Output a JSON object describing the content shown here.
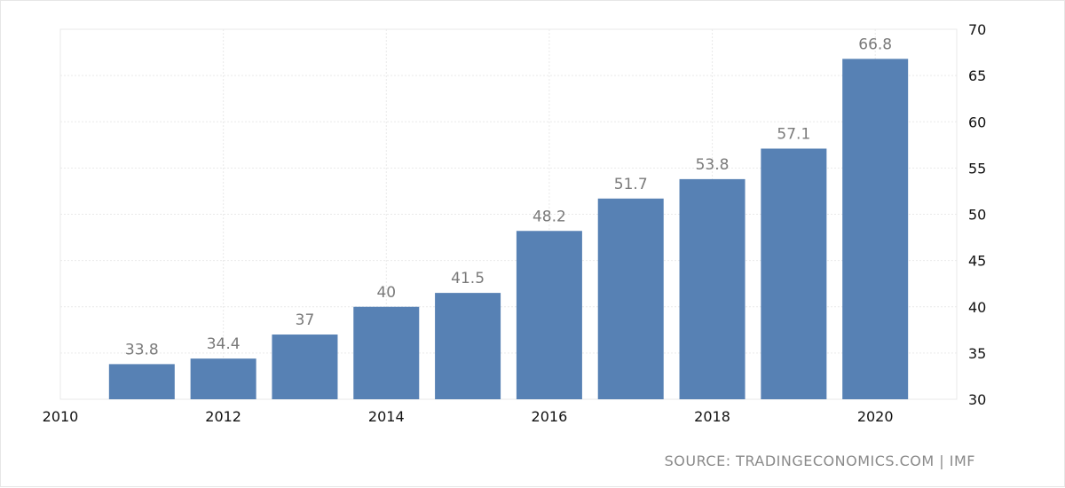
{
  "chart_data": {
    "type": "bar",
    "title": "",
    "xlabel": "",
    "ylabel": "",
    "x": [
      2011,
      2012,
      2013,
      2014,
      2015,
      2016,
      2017,
      2018,
      2019,
      2020
    ],
    "values": [
      33.8,
      34.4,
      37,
      40,
      41.5,
      48.2,
      51.7,
      53.8,
      57.1,
      66.8
    ],
    "data_labels": [
      "33.8",
      "34.4",
      "37",
      "40",
      "41.5",
      "48.2",
      "51.7",
      "53.8",
      "57.1",
      "66.8"
    ],
    "xlim": [
      2010,
      2021
    ],
    "ylim": [
      30,
      70
    ],
    "x_ticks": [
      2010,
      2012,
      2014,
      2016,
      2018,
      2020
    ],
    "x_tick_labels": [
      "2010",
      "2012",
      "2014",
      "2016",
      "2018",
      "2020"
    ],
    "y_ticks": [
      30,
      35,
      40,
      45,
      50,
      55,
      60,
      65,
      70
    ],
    "y_tick_labels": [
      "30",
      "35",
      "40",
      "45",
      "50",
      "55",
      "60",
      "65",
      "70"
    ],
    "y_axis_side": "right",
    "grid": true,
    "legend": "none",
    "bar_color": "#5781b4",
    "source": "SOURCE: TRADINGECONOMICS.COM | IMF"
  }
}
